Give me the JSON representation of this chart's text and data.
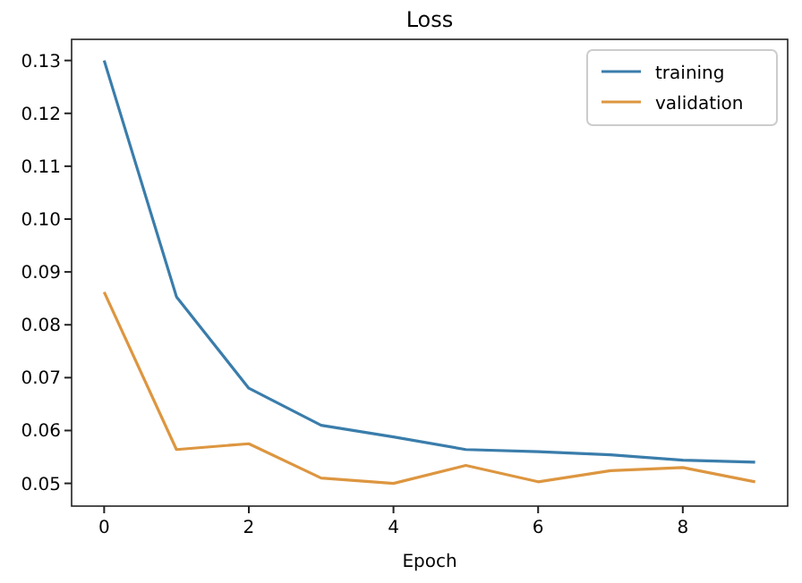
{
  "chart_data": {
    "type": "line",
    "title": "Loss",
    "xlabel": "Epoch",
    "x": [
      0,
      1,
      2,
      3,
      4,
      5,
      6,
      7,
      8,
      9
    ],
    "series": [
      {
        "name": "training",
        "color": "#3a7dab",
        "values": [
          0.13,
          0.0853,
          0.068,
          0.061,
          0.0588,
          0.0564,
          0.056,
          0.0554,
          0.0544,
          0.054
        ]
      },
      {
        "name": "validation",
        "color": "#dd9640",
        "values": [
          0.0862,
          0.0564,
          0.0575,
          0.051,
          0.05,
          0.0534,
          0.0503,
          0.0524,
          0.053,
          0.0503
        ]
      }
    ],
    "xlim": [
      -0.45,
      9.45
    ],
    "ylim": [
      0.0457,
      0.134
    ],
    "xticks": [
      0,
      2,
      4,
      6,
      8
    ],
    "yticks": [
      {
        "value": 0.05,
        "label": "0.05"
      },
      {
        "value": 0.06,
        "label": "0.06"
      },
      {
        "value": 0.07,
        "label": "0.07"
      },
      {
        "value": 0.08,
        "label": "0.08"
      },
      {
        "value": 0.09,
        "label": "0.09"
      },
      {
        "value": 0.1,
        "label": "0.10"
      },
      {
        "value": 0.11,
        "label": "0.11"
      },
      {
        "value": 0.12,
        "label": "0.12"
      },
      {
        "value": 0.13,
        "label": "0.13"
      }
    ],
    "grid": false,
    "legend": "top right",
    "marker": "none",
    "line_style": "solid"
  }
}
